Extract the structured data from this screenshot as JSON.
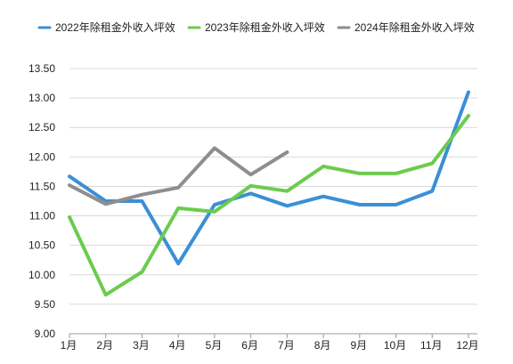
{
  "chart_data": {
    "type": "line",
    "categories": [
      "1月",
      "2月",
      "3月",
      "4月",
      "5月",
      "6月",
      "7月",
      "8月",
      "9月",
      "10月",
      "11月",
      "12月"
    ],
    "ylim": [
      9.0,
      13.5
    ],
    "yticks": [
      "9.00",
      "9.50",
      "10.00",
      "10.50",
      "11.00",
      "11.50",
      "12.00",
      "12.50",
      "13.00",
      "13.50"
    ],
    "grid": true,
    "legend": "top",
    "series": [
      {
        "name": "2022年除租金外收入坪效",
        "color": "#3b8fd6",
        "values": [
          11.67,
          11.25,
          11.25,
          10.19,
          11.19,
          11.38,
          11.17,
          11.33,
          11.19,
          11.19,
          11.42,
          13.1
        ]
      },
      {
        "name": "2023年除租金外收入坪效",
        "color": "#6ccb4f",
        "values": [
          10.98,
          9.66,
          10.05,
          11.13,
          11.07,
          11.51,
          11.42,
          11.84,
          11.72,
          11.72,
          11.89,
          12.7
        ]
      },
      {
        "name": "2024年除租金外收入坪效",
        "color": "#8e8e8e",
        "values": [
          11.52,
          11.2,
          11.36,
          11.48,
          12.15,
          11.7,
          12.08,
          null,
          null,
          null,
          null,
          null
        ]
      }
    ]
  }
}
